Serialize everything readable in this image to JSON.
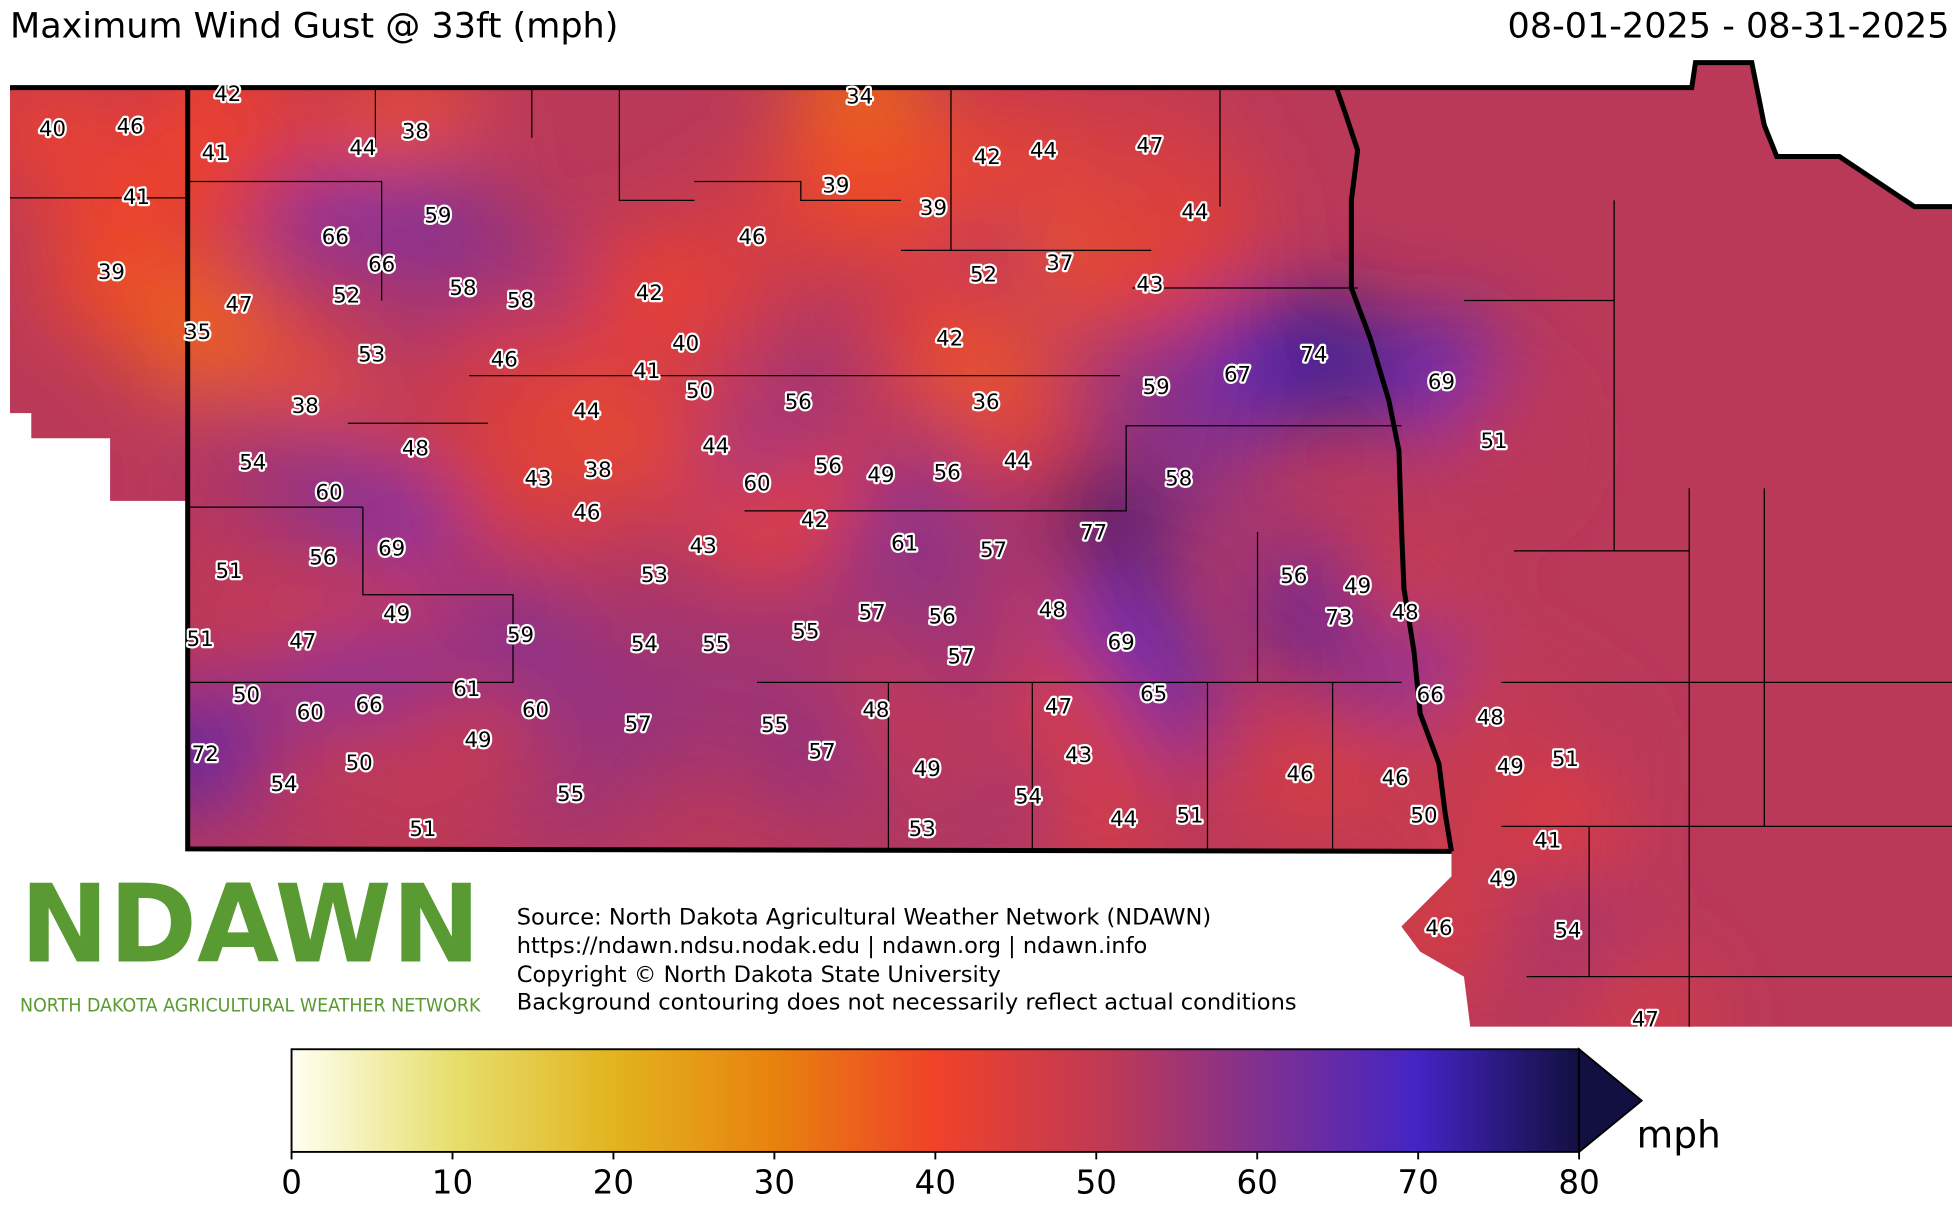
{
  "header": {
    "title": "Maximum Wind Gust @ 33ft (mph)",
    "date_range": "08-01-2025 - 08-31-2025"
  },
  "stations": [
    40,
    46,
    42,
    41,
    44,
    38,
    34,
    42,
    44,
    47,
    41,
    39,
    39,
    44,
    59,
    66,
    46,
    39,
    66,
    37,
    52,
    43,
    58,
    58,
    42,
    47,
    52,
    35,
    40,
    53,
    42,
    74,
    67,
    46,
    41,
    50,
    69,
    59,
    38,
    56,
    36,
    44,
    48,
    51,
    44,
    54,
    56,
    49,
    56,
    44,
    58,
    43,
    38,
    60,
    60,
    46,
    42,
    77,
    69,
    56,
    61,
    57,
    43,
    51,
    53,
    56,
    49,
    73,
    48,
    49,
    48,
    57,
    56,
    55,
    51,
    47,
    59,
    54,
    55,
    69,
    57,
    50,
    60,
    66,
    61,
    65,
    66,
    60,
    57,
    55,
    48,
    47,
    48,
    49,
    72,
    57,
    43,
    49,
    51,
    54,
    50,
    49,
    46,
    46,
    55,
    54,
    50,
    41,
    51,
    53,
    44,
    51,
    49,
    46,
    54,
    47
  ],
  "source": [
    "Source: North Dakota Agricultural Weather Network (NDAWN)",
    "https://ndawn.ndsu.nodak.edu | ndawn.org | ndawn.info",
    "Copyright © North Dakota State University",
    "Background contouring does not necessarily reflect actual conditions"
  ],
  "logo": {
    "name": "NDAWN",
    "tagline": "NORTH DAKOTA AGRICULTURAL WEATHER NETWORK"
  },
  "colorbar": {
    "lim": [
      0,
      80
    ],
    "ticks": [
      0,
      10,
      20,
      30,
      40,
      50,
      60,
      70,
      80
    ],
    "colors": [
      "#fffff2",
      "#e6df6e",
      "#e2b41e",
      "#e8820e",
      "#f0422a",
      "#c23a52",
      "#82308f",
      "#4424c4",
      "#121040"
    ],
    "label": "mph"
  }
}
